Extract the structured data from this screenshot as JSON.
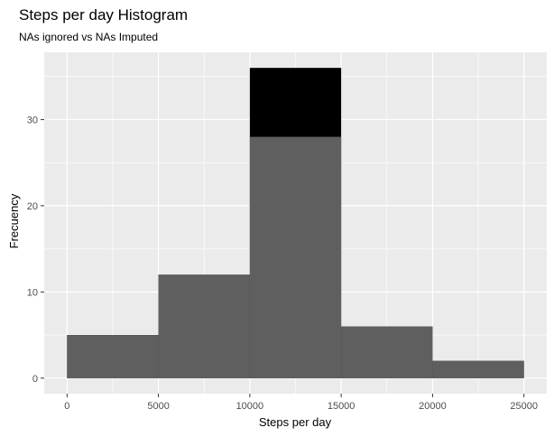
{
  "chart_data": {
    "type": "bar",
    "title": "Steps per day Histogram",
    "subtitle": "NAs ignored vs NAs Imputed",
    "xlabel": "Steps per day",
    "ylabel": "Frecuency",
    "bins": [
      {
        "x0": 0,
        "x1": 5000
      },
      {
        "x0": 5000,
        "x1": 10000
      },
      {
        "x0": 10000,
        "x1": 15000
      },
      {
        "x0": 15000,
        "x1": 20000
      },
      {
        "x0": 20000,
        "x1": 25000
      }
    ],
    "series": [
      {
        "values": [
          5,
          12,
          36,
          6,
          2
        ],
        "color": "#000000"
      },
      {
        "values": [
          5,
          12,
          28,
          6,
          2
        ],
        "color": "#5f5f5f"
      }
    ],
    "x_ticks": [
      0,
      5000,
      10000,
      15000,
      20000,
      25000
    ],
    "y_ticks": [
      0,
      10,
      20,
      30
    ],
    "xlim": [
      -1250,
      26250
    ],
    "ylim": [
      -1.8,
      37.8
    ],
    "grid": true,
    "panel_background": "#ebebeb",
    "grid_color": "#ffffff"
  }
}
